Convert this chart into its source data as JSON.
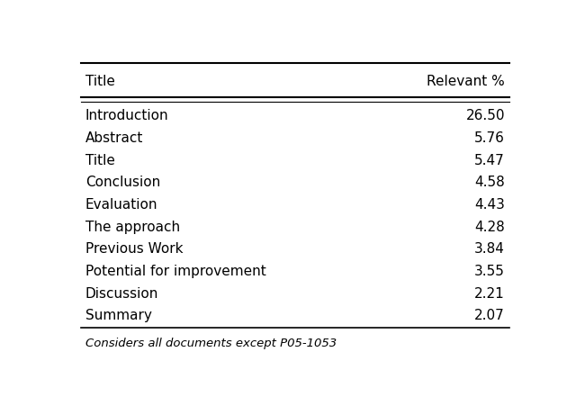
{
  "col_headers": [
    "Title",
    "Relevant %"
  ],
  "rows": [
    [
      "Introduction",
      "26.50"
    ],
    [
      "Abstract",
      "5.76"
    ],
    [
      "Title",
      "5.47"
    ],
    [
      "Conclusion",
      "4.58"
    ],
    [
      "Evaluation",
      "4.43"
    ],
    [
      "The approach",
      "4.28"
    ],
    [
      "Previous Work",
      "3.84"
    ],
    [
      "Potential for improvement",
      "3.55"
    ],
    [
      "Discussion",
      "2.21"
    ],
    [
      "Summary",
      "2.07"
    ]
  ],
  "footnote": "Considers all documents except P05-1053",
  "bg_color": "#ffffff",
  "text_color": "#000000",
  "header_fontsize": 11,
  "row_fontsize": 11,
  "footnote_fontsize": 9.5
}
